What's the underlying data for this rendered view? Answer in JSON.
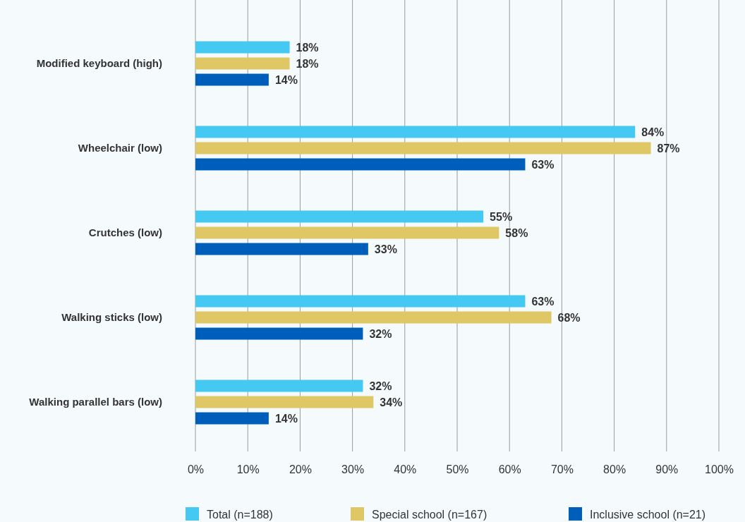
{
  "chart_data": {
    "type": "bar",
    "orientation": "horizontal",
    "categories": [
      "Modified keyboard (high)",
      "Wheelchair (low)",
      "Crutches (low)",
      "Walking sticks (low)",
      "Walking parallel bars (low)"
    ],
    "series": [
      {
        "name": "Total (n=188)",
        "color": "#45c8f2",
        "values": [
          18,
          84,
          55,
          63,
          32
        ],
        "value_labels": [
          "18%",
          "84%",
          "55%",
          "63%",
          "32%"
        ]
      },
      {
        "name": "Special school (n=167)",
        "color": "#e0c766",
        "values": [
          18,
          87,
          58,
          68,
          34
        ],
        "value_labels": [
          "18%",
          "87%",
          "58%",
          "68%",
          "34%"
        ]
      },
      {
        "name": "Inclusive school (n=21)",
        "color": "#005ebb",
        "values": [
          14,
          63,
          33,
          32,
          14
        ],
        "value_labels": [
          "14%",
          "63%",
          "33%",
          "32%",
          "14%"
        ]
      }
    ],
    "xlim": [
      0,
      100
    ],
    "xticks": [
      {
        "value": 0,
        "label": "0%"
      },
      {
        "value": 10,
        "label": "10%"
      },
      {
        "value": 20,
        "label": "20%"
      },
      {
        "value": 30,
        "label": "30%"
      },
      {
        "value": 40,
        "label": "40%"
      },
      {
        "value": 50,
        "label": "50%"
      },
      {
        "value": 60,
        "label": "60%"
      },
      {
        "value": 70,
        "label": "70%"
      },
      {
        "value": 80,
        "label": "80%"
      },
      {
        "value": 90,
        "label": "90%"
      },
      {
        "value": 100,
        "label": "100%"
      }
    ],
    "grid": "x",
    "legend": "bottom"
  }
}
